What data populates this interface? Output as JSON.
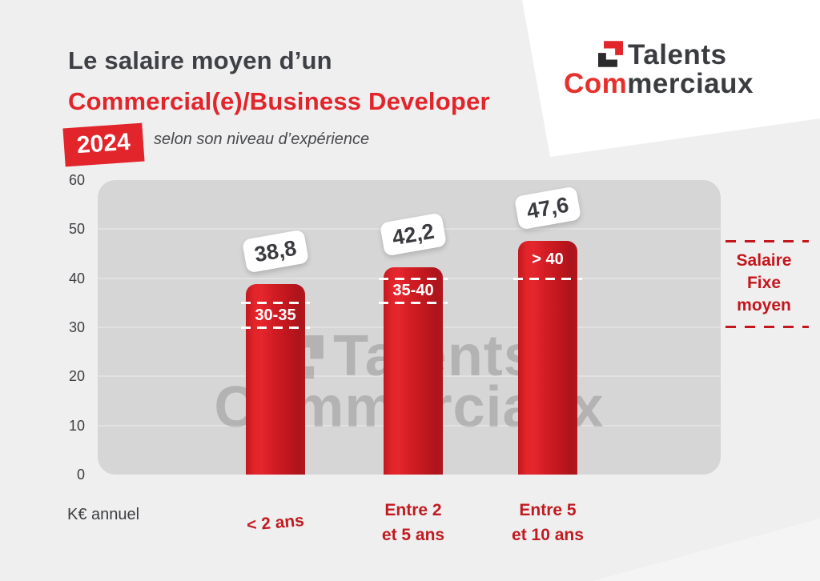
{
  "header": {
    "title_line1": "Le salaire moyen d’un",
    "title_line2": "Commercial(e)/Business Developer",
    "year_badge": "2024",
    "subtitle": "selon son niveau d’expérience"
  },
  "logo": {
    "talents": "Talents",
    "com": "Com",
    "merciaux": "merciaux"
  },
  "watermark": {
    "talents": "Talents",
    "commerciaux": "Commerciaux"
  },
  "axis": {
    "unit": "K€ annuel"
  },
  "annotation": {
    "lines": [
      "Salaire",
      "Fixe",
      "moyen"
    ]
  },
  "chart_data": {
    "type": "bar",
    "title": "Le salaire moyen d’un Commercial(e)/Business Developer 2024",
    "subtitle": "selon son niveau d’expérience",
    "categories": [
      "< 2 ans",
      "Entre 2\net 5 ans",
      "Entre 5\net 10 ans"
    ],
    "values": [
      38.8,
      42.2,
      47.6
    ],
    "value_labels": [
      "38,8",
      "42,2",
      "47,6"
    ],
    "bar_range_labels": [
      "30-35",
      "35-40",
      "> 40"
    ],
    "bar_range_bounds": [
      [
        30,
        35
      ],
      [
        35,
        40
      ],
      [
        40,
        null
      ]
    ],
    "ylabel": "K€ annuel",
    "ylim": [
      0,
      60
    ],
    "yticks": [
      0,
      10,
      20,
      30,
      40,
      50,
      60
    ],
    "right_annotation": "Salaire Fixe moyen",
    "bar_color": "#d01b22",
    "grid": true,
    "legend": "none"
  }
}
